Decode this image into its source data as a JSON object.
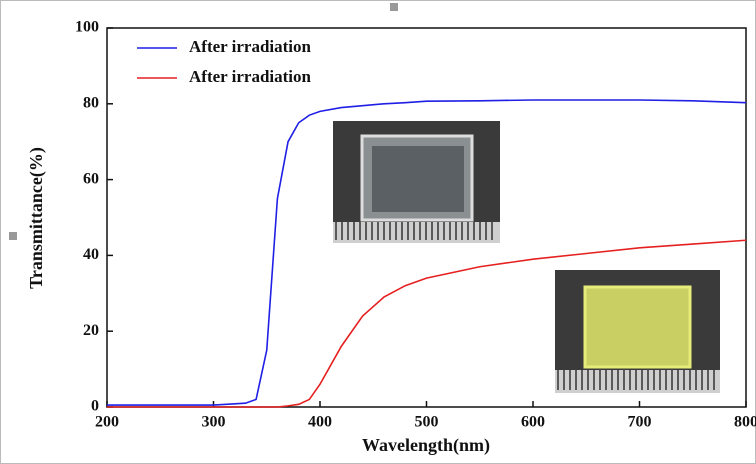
{
  "chart_data": {
    "type": "line",
    "xlabel": "Wavelength(nm)",
    "ylabel": "Transmittance(%)",
    "x": [
      200,
      250,
      300,
      330,
      340,
      350,
      360,
      370,
      380,
      390,
      400,
      420,
      440,
      460,
      480,
      500,
      550,
      600,
      650,
      700,
      750,
      800
    ],
    "series": [
      {
        "name": "After irradiation",
        "color": "#1f1fe6",
        "values": [
          0.5,
          0.5,
          0.5,
          1,
          2,
          15,
          55,
          70,
          75,
          77,
          78,
          79,
          79.5,
          80,
          80.3,
          80.7,
          80.8,
          81,
          81,
          81,
          80.8,
          80.3
        ]
      },
      {
        "name": "After irradiation",
        "color": "#e62020",
        "values": [
          0,
          0,
          0,
          0,
          0,
          0,
          0,
          0.3,
          0.7,
          2,
          6,
          16,
          24,
          29,
          32,
          34,
          37,
          39,
          40.5,
          42,
          43,
          44
        ]
      }
    ],
    "xlim": [
      200,
      800
    ],
    "ylim": [
      0,
      100
    ],
    "xticks": [
      200,
      300,
      400,
      500,
      600,
      700,
      800
    ],
    "yticks": [
      0,
      20,
      40,
      60,
      80,
      100
    ],
    "legend": "upper left"
  }
}
